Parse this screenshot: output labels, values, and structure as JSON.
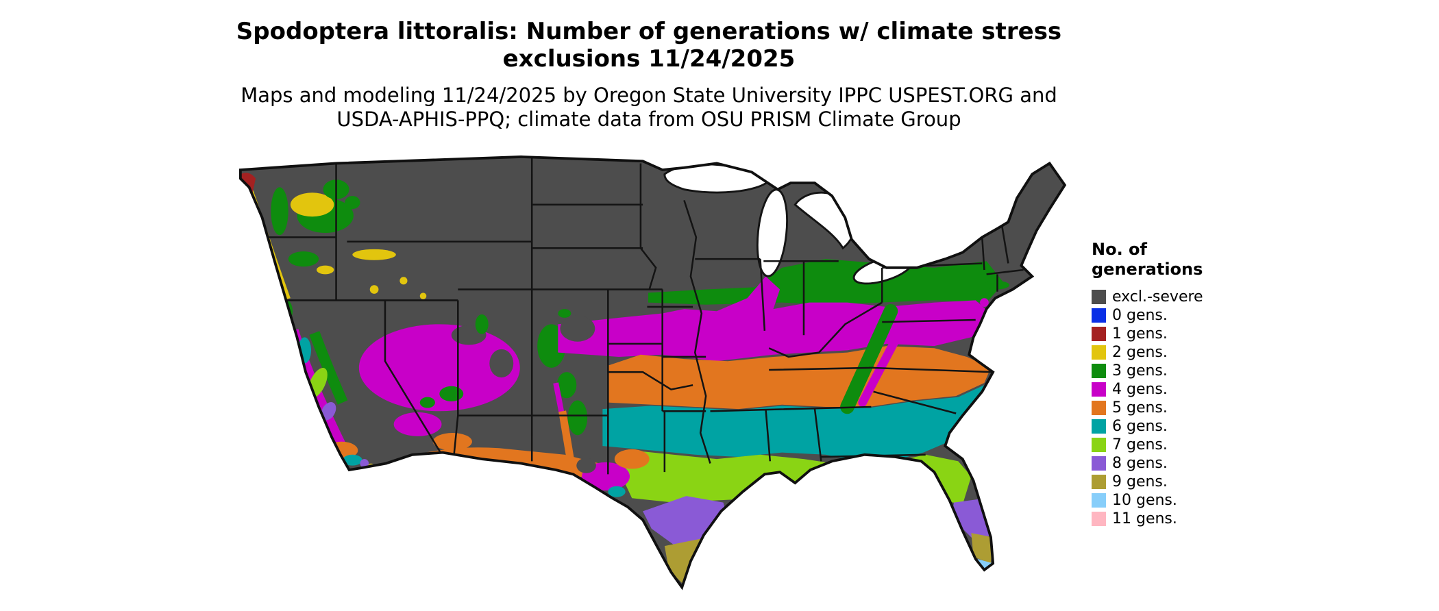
{
  "title": {
    "line1": "Spodoptera littoralis: Number of generations w/ climate stress",
    "line2": "exclusions 11/24/2025"
  },
  "subtitle": {
    "line1": "Maps and modeling 11/24/2025 by Oregon State University IPPC USPEST.ORG and",
    "line2": "USDA-APHIS-PPQ; climate data from OSU PRISM Climate Group"
  },
  "legend": {
    "title_line1": "No. of",
    "title_line2": "generations",
    "items": [
      {
        "label": "excl.-severe",
        "color": "#4d4d4d"
      },
      {
        "label": "0 gens.",
        "color": "#0a2fe6"
      },
      {
        "label": "1 gens.",
        "color": "#a42121"
      },
      {
        "label": "2 gens.",
        "color": "#e2c50e"
      },
      {
        "label": "3 gens.",
        "color": "#0e8c0e"
      },
      {
        "label": "4 gens.",
        "color": "#c800c8"
      },
      {
        "label": "5 gens.",
        "color": "#e2761f"
      },
      {
        "label": "6 gens.",
        "color": "#00a3a3"
      },
      {
        "label": "7 gens.",
        "color": "#8ad414"
      },
      {
        "label": "8 gens.",
        "color": "#8a5ad6"
      },
      {
        "label": "9 gens.",
        "color": "#ad9d33"
      },
      {
        "label": "10 gens.",
        "color": "#87cefa"
      },
      {
        "label": "11 gens.",
        "color": "#ffb6c1"
      }
    ]
  },
  "map": {
    "colors": {
      "excl": "#4d4d4d",
      "g0": "#0a2fe6",
      "g1": "#a42121",
      "g2": "#e2c50e",
      "g3": "#0e8c0e",
      "g4": "#c800c8",
      "g5": "#e2761f",
      "g6": "#00a3a3",
      "g7": "#8ad414",
      "g8": "#8a5ad6",
      "g9": "#ad9d33",
      "g10": "#87cefa",
      "g11": "#ffb6c1"
    }
  }
}
